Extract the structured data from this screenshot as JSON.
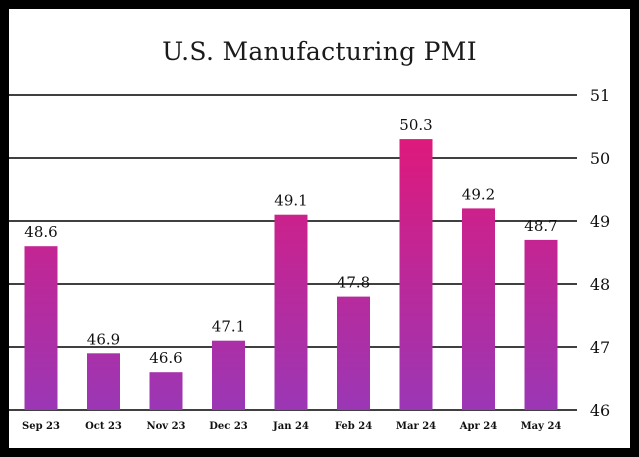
{
  "chart_data": {
    "type": "bar",
    "title": "U.S. Manufacturing PMI",
    "categories": [
      "Sep 23",
      "Oct 23",
      "Nov 23",
      "Dec 23",
      "Jan 24",
      "Feb 24",
      "Mar 24",
      "Apr 24",
      "May 24"
    ],
    "values": [
      48.6,
      46.9,
      46.6,
      47.1,
      49.1,
      47.8,
      50.3,
      49.2,
      48.7
    ],
    "data_labels": [
      "48.6",
      "46.9",
      "46.6",
      "47.1",
      "49.1",
      "47.8",
      "50.3",
      "49.2",
      "48.7"
    ],
    "y_ticks": [
      "46",
      "47",
      "48",
      "49",
      "50",
      "51"
    ],
    "ylim": [
      46,
      51
    ],
    "y_axis_side": "right",
    "grid": "horizontal",
    "legend": "none",
    "colors": {
      "bar_top": "#e0187a",
      "bar_bottom": "#9b37b5",
      "grid": "#000000",
      "frame": "#000000"
    }
  }
}
